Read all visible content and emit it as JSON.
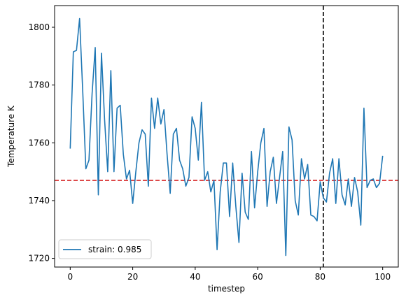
{
  "chart_data": {
    "type": "line",
    "title": "",
    "xlabel": "timestep",
    "ylabel": "Temperature K",
    "xlim": [
      -5,
      105
    ],
    "ylim": [
      1717,
      1807.5
    ],
    "xticks": [
      0,
      20,
      40,
      60,
      80,
      100
    ],
    "yticks": [
      1720,
      1740,
      1760,
      1780,
      1800
    ],
    "grid": false,
    "legend_position": "lower-left",
    "series": [
      {
        "name": "strain: 0.985",
        "color": "#1f77b4",
        "x": [
          0,
          1,
          2,
          3,
          4,
          5,
          6,
          7,
          8,
          9,
          10,
          11,
          12,
          13,
          14,
          15,
          16,
          17,
          18,
          19,
          20,
          21,
          22,
          23,
          24,
          25,
          26,
          27,
          28,
          29,
          30,
          31,
          32,
          33,
          34,
          35,
          36,
          37,
          38,
          39,
          40,
          41,
          42,
          43,
          44,
          45,
          46,
          47,
          48,
          49,
          50,
          51,
          52,
          53,
          54,
          55,
          56,
          57,
          58,
          59,
          60,
          61,
          62,
          63,
          64,
          65,
          66,
          67,
          68,
          69,
          70,
          71,
          72,
          73,
          74,
          75,
          76,
          77,
          78,
          79,
          80,
          81,
          82,
          83,
          84,
          85,
          86,
          87,
          88,
          89,
          90,
          91,
          92,
          93,
          94,
          95,
          96,
          97,
          98,
          99,
          100
        ],
        "y": [
          1758,
          1791.5,
          1792,
          1803,
          1778,
          1751,
          1754,
          1777,
          1793,
          1742,
          1791,
          1768,
          1750,
          1785,
          1750,
          1772,
          1773,
          1756,
          1747.5,
          1750.5,
          1739,
          1750,
          1760,
          1764.5,
          1763,
          1745,
          1775.5,
          1765,
          1775.5,
          1766.5,
          1771.5,
          1756,
          1742.5,
          1763,
          1765,
          1754,
          1751,
          1745,
          1748,
          1769,
          1765,
          1754,
          1774,
          1747,
          1750,
          1743,
          1747,
          1723,
          1743,
          1753,
          1753,
          1734.5,
          1753,
          1738,
          1725.5,
          1749.5,
          1736,
          1733.5,
          1757,
          1737.5,
          1750,
          1760,
          1765,
          1738,
          1750,
          1755,
          1739,
          1748,
          1757,
          1721,
          1765.5,
          1761,
          1740,
          1735,
          1754.5,
          1747.5,
          1752.5,
          1735,
          1734.5,
          1733,
          1746.5,
          1741,
          1739.5,
          1749.5,
          1754.5,
          1739,
          1754.5,
          1742,
          1738.5,
          1747.5,
          1738,
          1748,
          1743,
          1731.5,
          1772,
          1744.5,
          1747,
          1747.5,
          1744.5,
          1746,
          1755.5
        ]
      }
    ],
    "reference_lines": [
      {
        "orientation": "horizontal",
        "value": 1747,
        "color": "#d62728",
        "style": "dashed"
      },
      {
        "orientation": "vertical",
        "value": 81,
        "color": "#000000",
        "style": "dashed"
      }
    ]
  }
}
